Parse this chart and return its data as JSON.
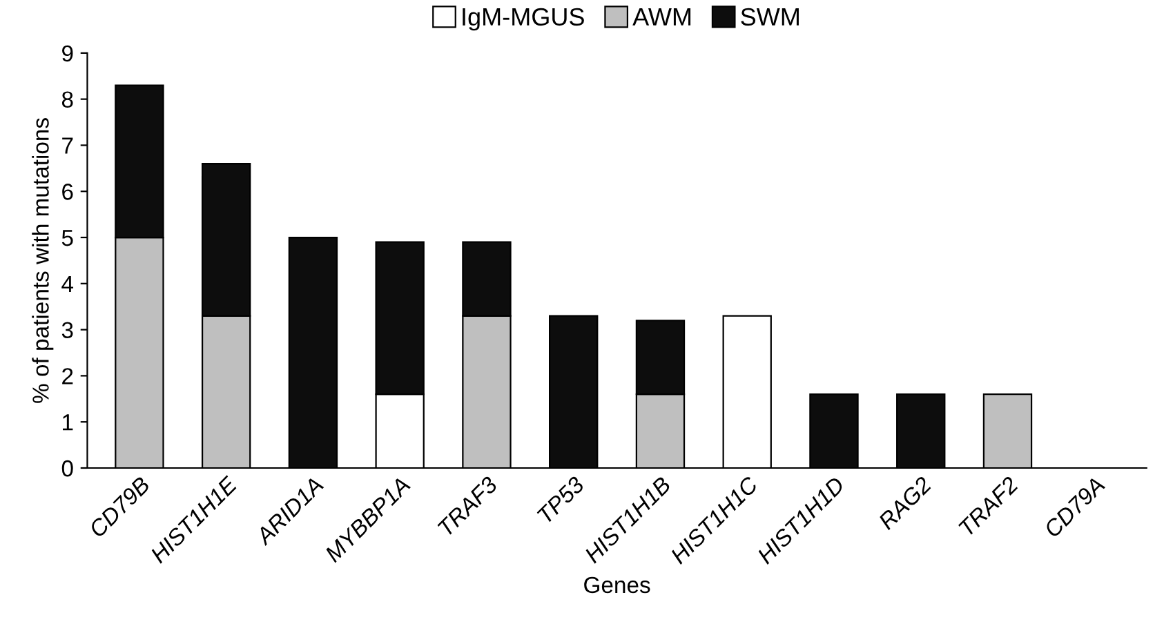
{
  "chart_data": {
    "type": "bar",
    "stacked": true,
    "xlabel": "Genes",
    "ylabel": "% of patients with mutations",
    "categories": [
      "CD79B",
      "HIST1H1E",
      "ARID1A",
      "MYBBP1A",
      "TRAF3",
      "TP53",
      "HIST1H1B",
      "HIST1H1C",
      "HIST1H1D",
      "RAG2",
      "TRAF2",
      "CD79A"
    ],
    "series": [
      {
        "name": "IgM-MGUS",
        "color": "#ffffff",
        "values": [
          0,
          0,
          0,
          1.6,
          0,
          0,
          0,
          3.3,
          0,
          0,
          0,
          0
        ]
      },
      {
        "name": "AWM",
        "color": "#bfbfbf",
        "values": [
          5.0,
          3.3,
          0,
          0,
          3.3,
          0,
          1.6,
          0,
          0,
          0,
          1.6,
          0
        ]
      },
      {
        "name": "SWM",
        "color": "#0d0d0d",
        "values": [
          3.3,
          3.3,
          5.0,
          3.3,
          1.6,
          3.3,
          1.6,
          0,
          1.6,
          1.6,
          0,
          0
        ]
      }
    ],
    "ylim": [
      0,
      9
    ],
    "yticks": [
      0,
      1,
      2,
      3,
      4,
      5,
      6,
      7,
      8,
      9
    ],
    "grid": false,
    "legend": "top"
  }
}
